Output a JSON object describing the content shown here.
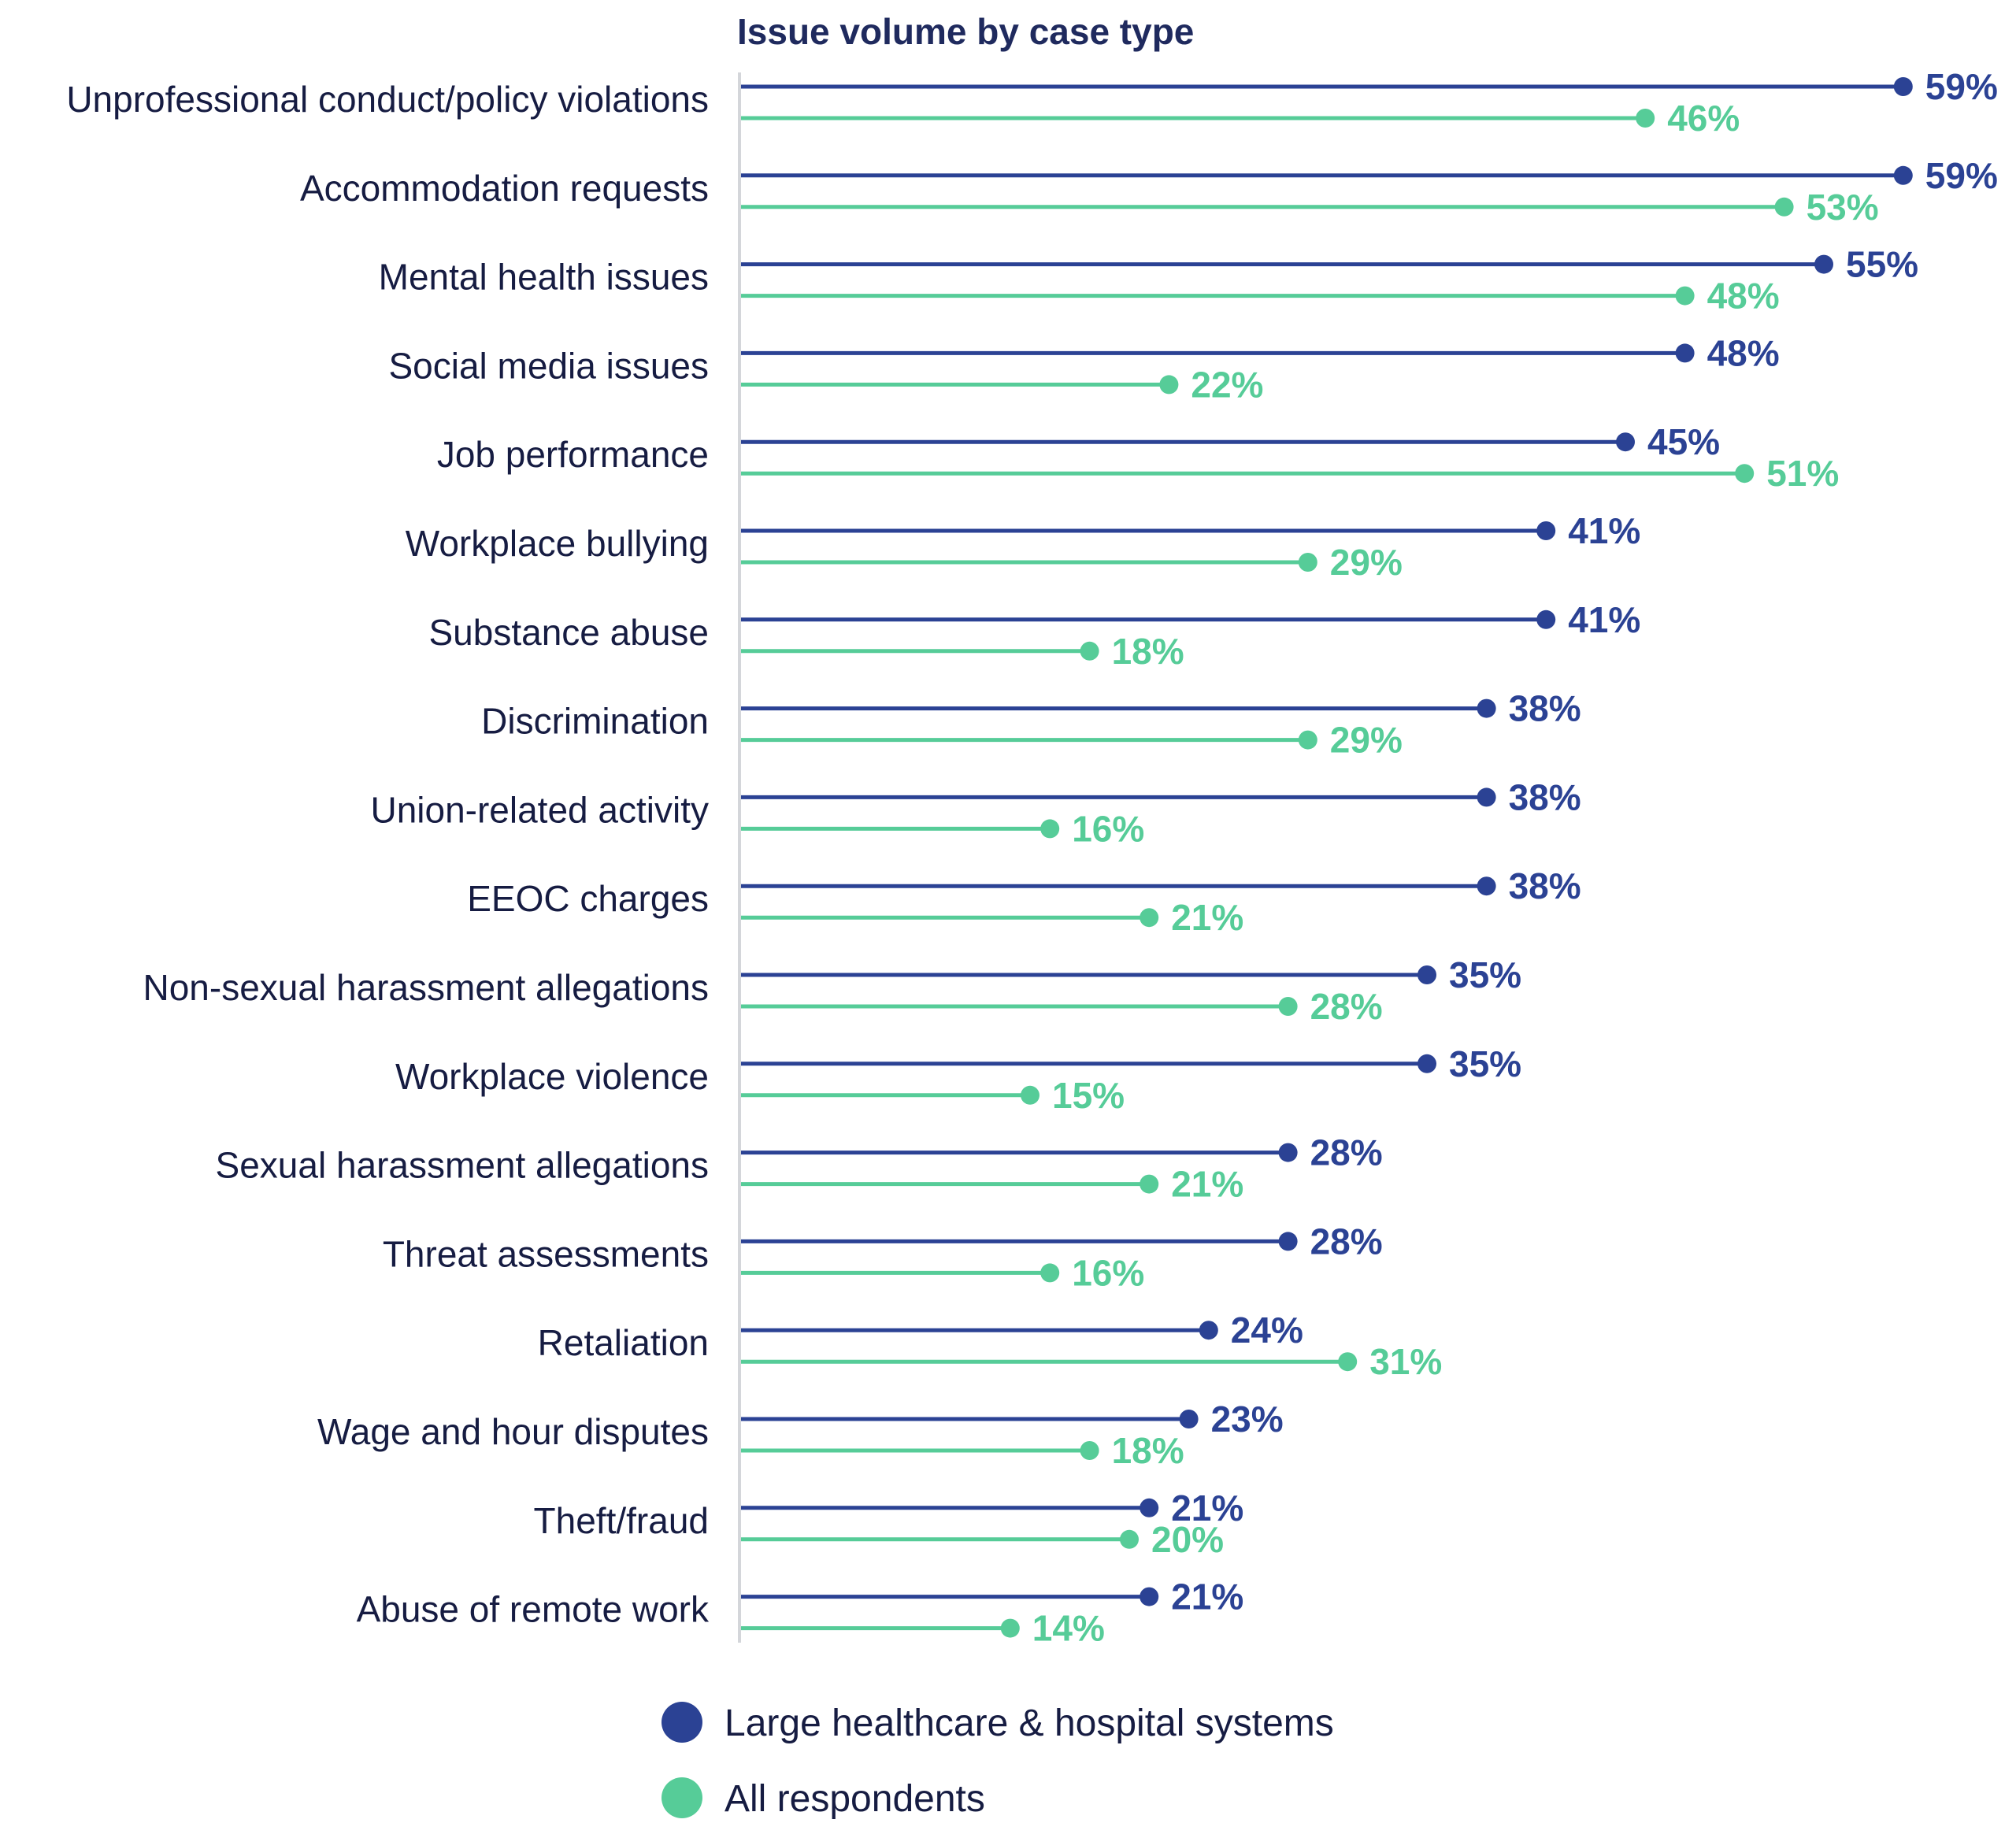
{
  "chart_data": {
    "type": "lollipop",
    "title": "Issue volume by case type",
    "xlabel": "",
    "ylabel": "",
    "xlim": [
      0,
      60
    ],
    "grid": false,
    "legend_position": "bottom",
    "categories": [
      "Unprofessional conduct/policy violations",
      "Accommodation requests",
      "Mental health issues",
      "Social media issues",
      "Job performance",
      "Workplace bullying",
      "Substance abuse",
      "Discrimination",
      "Union-related activity",
      "EEOC charges",
      "Non-sexual harassment allegations",
      "Workplace violence",
      "Sexual harassment allegations",
      "Threat assessments",
      "Retaliation",
      "Wage and hour disputes",
      "Theft/fraud",
      "Abuse of remote work"
    ],
    "series": [
      {
        "name": "Large healthcare & hospital systems",
        "color": "#2b4294",
        "values": [
          59,
          59,
          55,
          48,
          45,
          41,
          41,
          38,
          38,
          38,
          35,
          35,
          28,
          28,
          24,
          23,
          21,
          21
        ]
      },
      {
        "name": "All respondents",
        "color": "#56cc98",
        "values": [
          46,
          53,
          48,
          22,
          51,
          29,
          18,
          29,
          16,
          21,
          28,
          15,
          21,
          16,
          31,
          18,
          20,
          14
        ]
      }
    ],
    "value_suffix": "%"
  },
  "colors": {
    "axis": "#d4d6da",
    "title": "#1f2a5e",
    "label": "#161c42"
  }
}
